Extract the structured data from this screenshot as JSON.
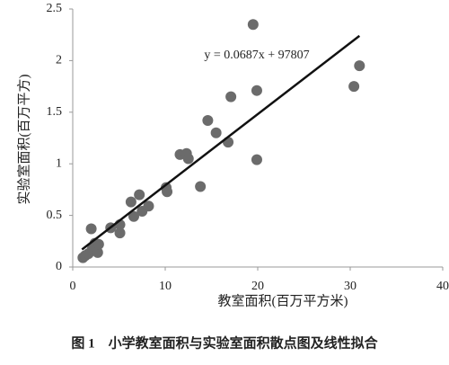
{
  "chart_data": {
    "type": "scatter",
    "x_label": "教室面积(百万平方米)",
    "y_label": "实验室面积(百万平方)",
    "caption": "图 1　小学教室面积与实验室面积散点图及线性拟合",
    "annotation": "y = 0.0687x + 97807",
    "xlim": [
      0,
      40
    ],
    "xticks": [
      0,
      10,
      20,
      30,
      40
    ],
    "ylim": [
      0,
      2.5
    ],
    "yticks": [
      0,
      0.5,
      1,
      1.5,
      2,
      2.5
    ],
    "color": "#6b6b6b",
    "x": [
      1.1,
      1.35,
      1.7,
      2.0,
      2.1,
      2.4,
      2.7,
      2.8,
      4.1,
      5.1,
      5.1,
      6.3,
      6.6,
      7.2,
      7.5,
      8.2,
      10.1,
      10.2,
      11.6,
      12.3,
      12.5,
      13.8,
      14.6,
      15.5,
      16.8,
      17.1,
      19.5,
      19.9,
      19.9,
      30.4,
      31.0
    ],
    "values": [
      0.09,
      0.11,
      0.13,
      0.37,
      0.17,
      0.23,
      0.14,
      0.22,
      0.38,
      0.41,
      0.33,
      0.63,
      0.49,
      0.7,
      0.54,
      0.59,
      0.77,
      0.73,
      1.09,
      1.1,
      1.05,
      0.78,
      1.42,
      1.3,
      1.21,
      1.65,
      2.35,
      1.71,
      1.04,
      1.75,
      1.95
    ],
    "trendline": {
      "color": "#111111",
      "x": [
        1,
        31
      ],
      "values": [
        0.17,
        2.24
      ]
    }
  }
}
